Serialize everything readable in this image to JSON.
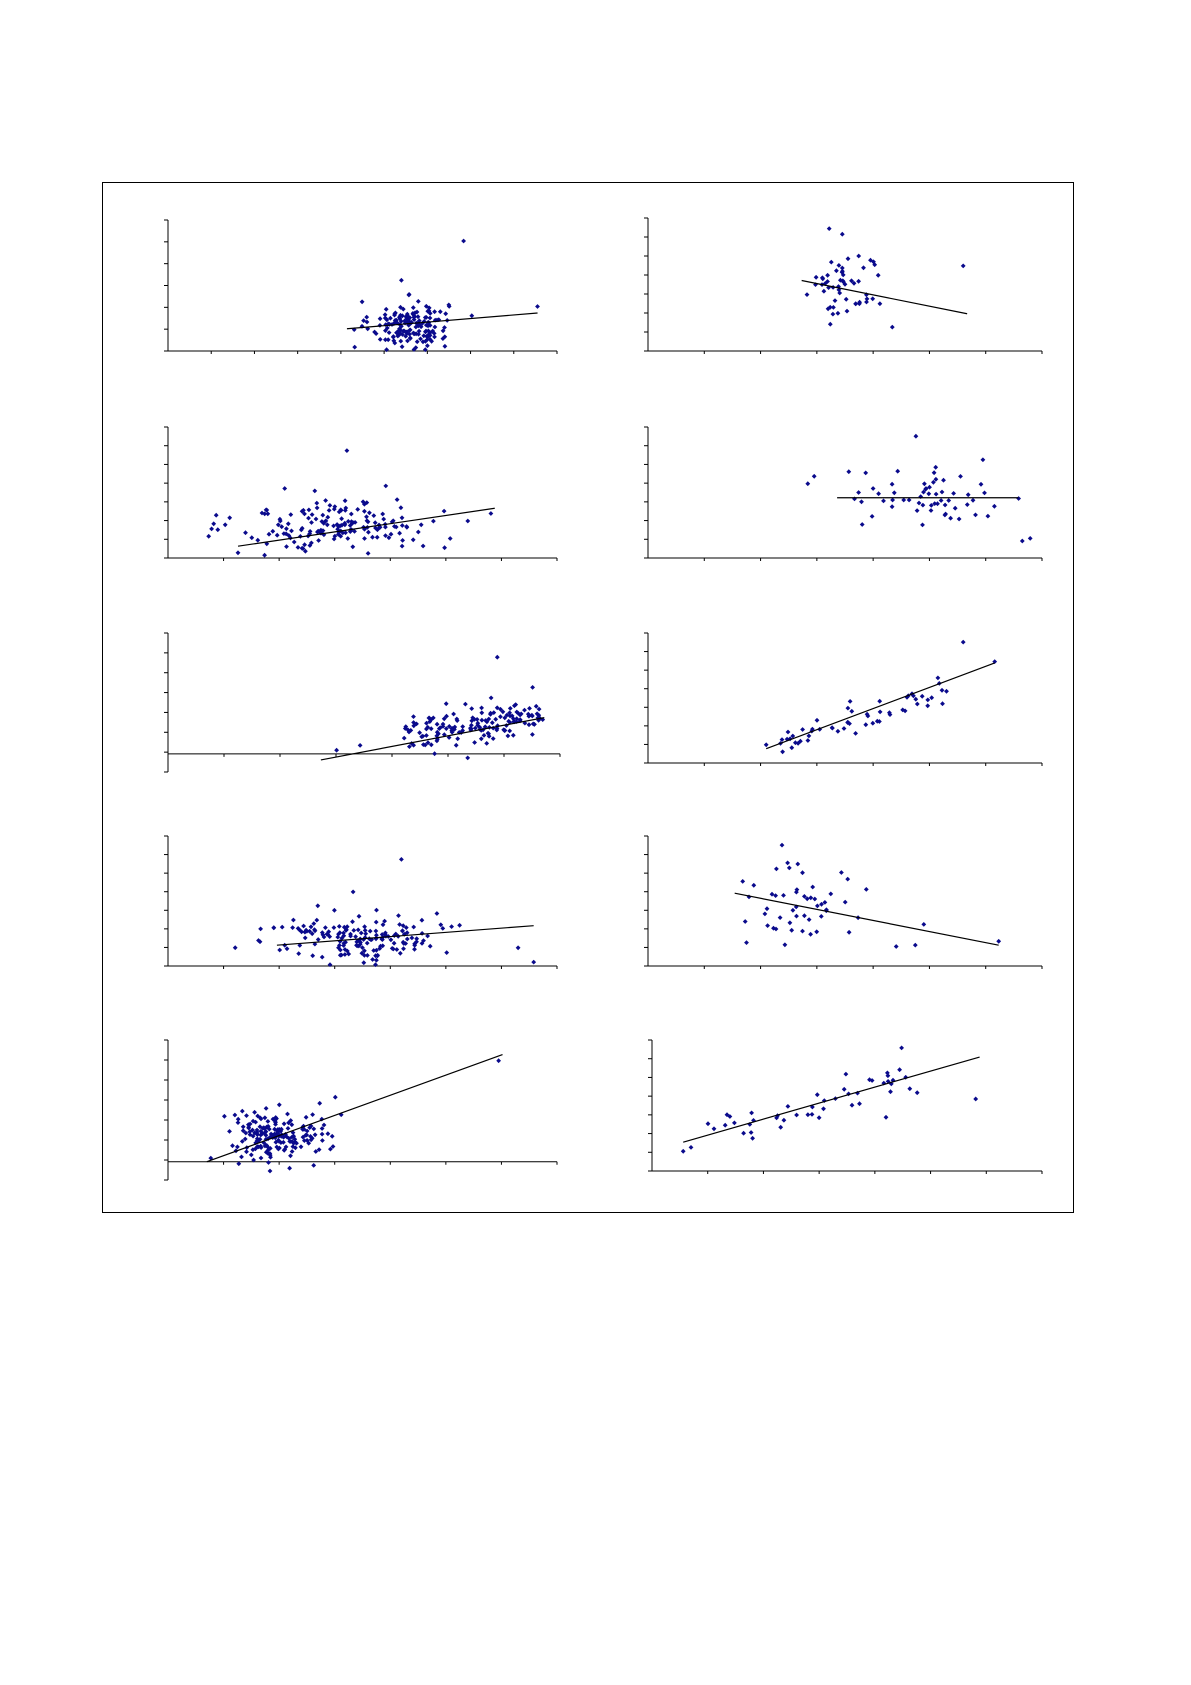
{
  "style": {
    "point_color": "#0a0a8c",
    "line_color": "#000000",
    "frame_color": "#000000"
  },
  "chart_data": [
    {
      "type": "scatter",
      "title": "",
      "xlabel": "",
      "ylabel": "",
      "grid": false,
      "legend": "none",
      "xlim": [
        0,
        100
      ],
      "ylim": [
        0,
        100
      ],
      "x_ticks": 9,
      "y_ticks": 6,
      "x_axis_at": 0,
      "cluster": {
        "cx": 62,
        "sx": 5,
        "cy": 20,
        "sy": 9,
        "n": 170
      },
      "points": [
        [
          48,
          3
        ],
        [
          76,
          84
        ],
        [
          95,
          34
        ],
        [
          60,
          54
        ],
        [
          70,
          30
        ]
      ],
      "trend": {
        "x": [
          46,
          95
        ],
        "y": [
          17,
          29
        ]
      }
    },
    {
      "type": "scatter",
      "title": "",
      "xlabel": "",
      "ylabel": "",
      "grid": false,
      "legend": "none",
      "xlim": [
        0,
        100
      ],
      "ylim": [
        0,
        100
      ],
      "x_ticks": 7,
      "y_ticks": 7,
      "x_axis_at": 0,
      "cluster": {
        "cx": 50,
        "sx": 5,
        "cy": 50,
        "sy": 14,
        "n": 55
      },
      "points": [
        [
          46,
          92
        ],
        [
          80,
          64
        ],
        [
          62,
          18
        ]
      ],
      "trend": {
        "x": [
          39,
          81
        ],
        "y": [
          53,
          28
        ]
      }
    },
    {
      "type": "scatter",
      "title": "",
      "xlabel": "",
      "ylabel": "",
      "grid": false,
      "legend": "none",
      "xlim": [
        0,
        100
      ],
      "ylim": [
        0,
        100
      ],
      "x_ticks": 7,
      "y_ticks": 7,
      "x_axis_at": 0,
      "cluster": {
        "cx": 44,
        "sx": 13,
        "cy": 25,
        "sy": 10,
        "n": 170
      },
      "points": [
        [
          46,
          82
        ],
        [
          83,
          34
        ],
        [
          18,
          4
        ],
        [
          56,
          55
        ]
      ],
      "trend": {
        "x": [
          18,
          84
        ],
        "y": [
          9,
          38
        ]
      }
    },
    {
      "type": "scatter",
      "title": "",
      "xlabel": "",
      "ylabel": "",
      "grid": false,
      "legend": "none",
      "xlim": [
        0,
        100
      ],
      "ylim": [
        0,
        100
      ],
      "x_ticks": 7,
      "y_ticks": 7,
      "x_axis_at": 0,
      "cluster": {
        "cx": 73,
        "sx": 12,
        "cy": 45,
        "sy": 11,
        "n": 60
      },
      "points": [
        [
          68,
          93
        ],
        [
          95,
          13
        ],
        [
          97,
          15
        ],
        [
          85,
          75
        ]
      ],
      "trend": {
        "x": [
          48,
          94
        ],
        "y": [
          46,
          46
        ]
      }
    },
    {
      "type": "scatter",
      "title": "",
      "xlabel": "",
      "ylabel": "",
      "grid": false,
      "legend": "none",
      "xlim": [
        0,
        100
      ],
      "ylim": [
        -15,
        100
      ],
      "x_ticks": 7,
      "y_ticks": 7,
      "x_axis_at": 0,
      "cluster_trend": {
        "from": 60,
        "to": 96,
        "sd": 7,
        "n": 160,
        "slope": 0.47,
        "intercept": -13
      },
      "points": [
        [
          84,
          80
        ],
        [
          43,
          3
        ],
        [
          49,
          7
        ],
        [
          93,
          55
        ],
        [
          80,
          38
        ]
      ],
      "trend": {
        "x": [
          39,
          96
        ],
        "y": [
          -5,
          30
        ]
      }
    },
    {
      "type": "scatter",
      "title": "",
      "xlabel": "",
      "ylabel": "",
      "grid": false,
      "legend": "none",
      "xlim": [
        0,
        100
      ],
      "ylim": [
        0,
        100
      ],
      "x_ticks": 7,
      "y_ticks": 7,
      "x_axis_at": 0,
      "cluster_trend": {
        "from": 33,
        "to": 77,
        "sd": 6,
        "n": 55,
        "slope": 0.95,
        "intercept": -16
      },
      "points": [
        [
          80,
          93
        ],
        [
          88,
          78
        ],
        [
          30,
          14
        ],
        [
          34,
          18
        ]
      ],
      "trend": {
        "x": [
          30,
          88
        ],
        "y": [
          11,
          77
        ]
      }
    },
    {
      "type": "scatter",
      "title": "",
      "xlabel": "",
      "ylabel": "",
      "grid": false,
      "legend": "none",
      "xlim": [
        0,
        100
      ],
      "ylim": [
        0,
        100
      ],
      "x_ticks": 7,
      "y_ticks": 7,
      "x_axis_at": 0,
      "cluster": {
        "cx": 50,
        "sx": 10,
        "cy": 22,
        "sy": 9,
        "n": 170
      },
      "points": [
        [
          60,
          82
        ],
        [
          90,
          14
        ],
        [
          94,
          3
        ],
        [
          30,
          16
        ]
      ],
      "trend": {
        "x": [
          28,
          94
        ],
        "y": [
          16,
          31
        ]
      }
    },
    {
      "type": "scatter",
      "title": "",
      "xlabel": "",
      "ylabel": "",
      "grid": false,
      "legend": "none",
      "xlim": [
        0,
        100
      ],
      "ylim": [
        0,
        100
      ],
      "x_ticks": 7,
      "y_ticks": 7,
      "x_axis_at": 0,
      "cluster": {
        "cx": 38,
        "sx": 8,
        "cy": 48,
        "sy": 14,
        "n": 50
      },
      "points": [
        [
          34,
          93
        ],
        [
          89,
          19
        ],
        [
          63,
          15
        ],
        [
          25,
          18
        ],
        [
          70,
          32
        ]
      ],
      "trend": {
        "x": [
          22,
          89
        ],
        "y": [
          56,
          16
        ]
      }
    },
    {
      "type": "scatter",
      "title": "",
      "xlabel": "",
      "ylabel": "",
      "grid": false,
      "legend": "none",
      "xlim": [
        0,
        100
      ],
      "ylim": [
        -15,
        100
      ],
      "x_ticks": 7,
      "y_ticks": 7,
      "x_axis_at": 0,
      "cluster": {
        "cx": 27,
        "sx": 6,
        "cy": 20,
        "sy": 10,
        "n": 190
      },
      "points": [
        [
          85,
          83
        ],
        [
          43,
          53
        ],
        [
          11,
          3
        ],
        [
          39,
          48
        ]
      ],
      "trend": {
        "x": [
          10,
          86
        ],
        "y": [
          0,
          88
        ]
      }
    },
    {
      "type": "scatter",
      "title": "",
      "xlabel": "",
      "ylabel": "",
      "grid": false,
      "legend": "none",
      "xlim": [
        0,
        100
      ],
      "ylim": [
        0,
        100
      ],
      "x_ticks": 7,
      "y_ticks": 7,
      "x_axis_at": 0,
      "cluster_trend": {
        "from": 14,
        "to": 68,
        "sd": 8,
        "n": 45,
        "slope": 0.75,
        "intercept": 20
      },
      "points": [
        [
          64,
          94
        ],
        [
          83,
          55
        ],
        [
          8,
          15
        ],
        [
          10,
          18
        ],
        [
          60,
          41
        ]
      ],
      "trend": {
        "x": [
          8,
          84
        ],
        "y": [
          22,
          87
        ]
      }
    }
  ]
}
